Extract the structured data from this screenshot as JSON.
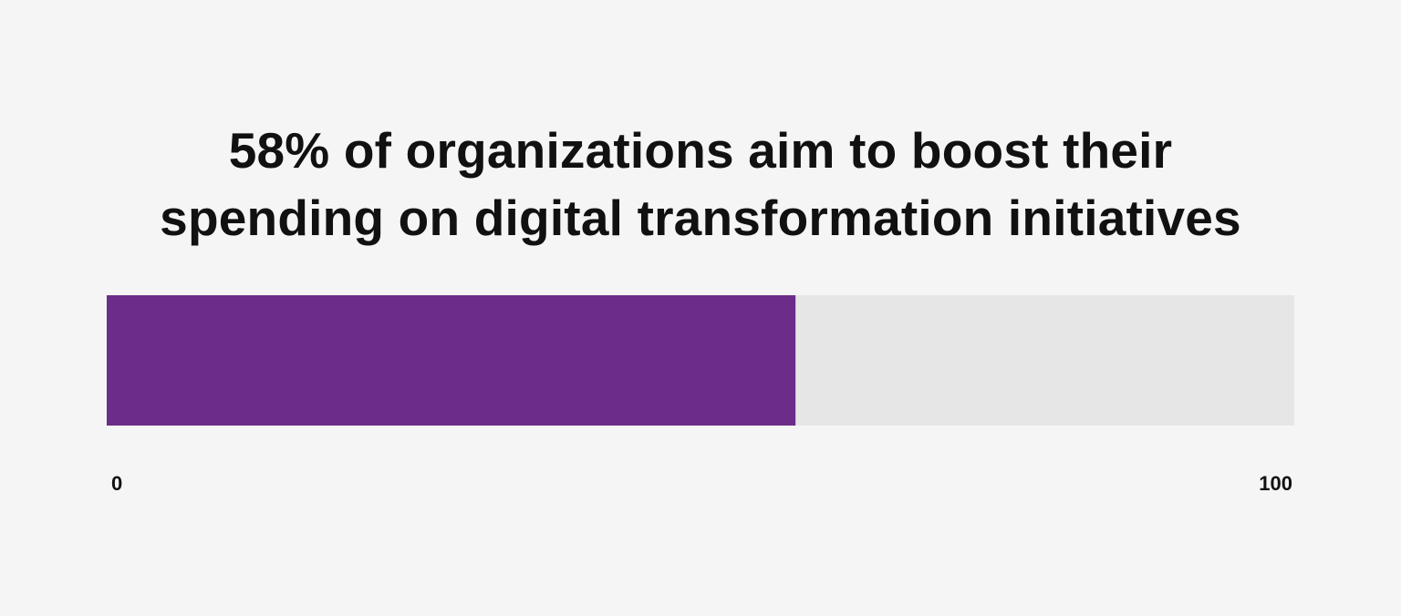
{
  "chart_data": {
    "type": "bar",
    "orientation": "horizontal",
    "title": [
      "58% of organizations aim to boost their",
      "spending on digital transformation initiatives"
    ],
    "values": [
      58
    ],
    "xlim": [
      0,
      100
    ],
    "tick_labels": [
      "0",
      "100"
    ],
    "grid": false,
    "colors": {
      "fill": "#6b2c8a",
      "track": "#e6e6e6",
      "background": "#f5f5f5"
    }
  }
}
